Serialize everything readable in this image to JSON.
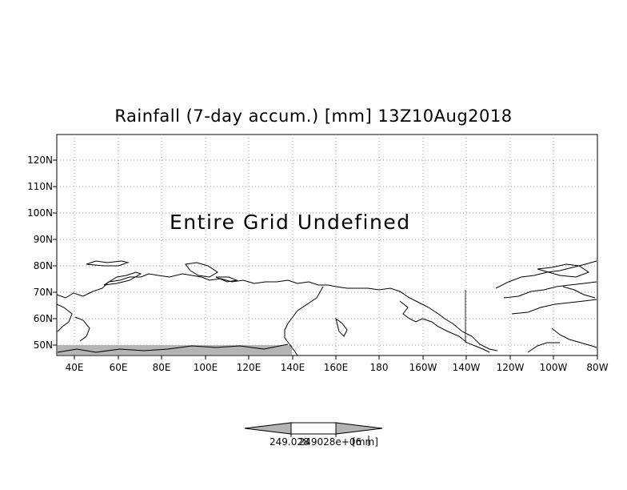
{
  "title": "Rainfall (7-day accum.) [mm] 13Z10Aug2018",
  "message": "Entire Grid Undefined",
  "lat_labels": [
    "120N",
    "110N",
    "100N",
    "90N",
    "80N",
    "70N",
    "60N",
    "50N"
  ],
  "lon_labels": [
    "40E",
    "60E",
    "80E",
    "100E",
    "120E",
    "140E",
    "160E",
    "180",
    "160W",
    "140W",
    "120W",
    "100W",
    "80W"
  ],
  "colorbar": {
    "value_label": "249.028",
    "value_label_2": "249028e+06",
    "unit_label": "[mm]"
  },
  "colors": {
    "fill_gray": "#b4b4b4",
    "grid": "#999999",
    "coast": "#000000"
  }
}
